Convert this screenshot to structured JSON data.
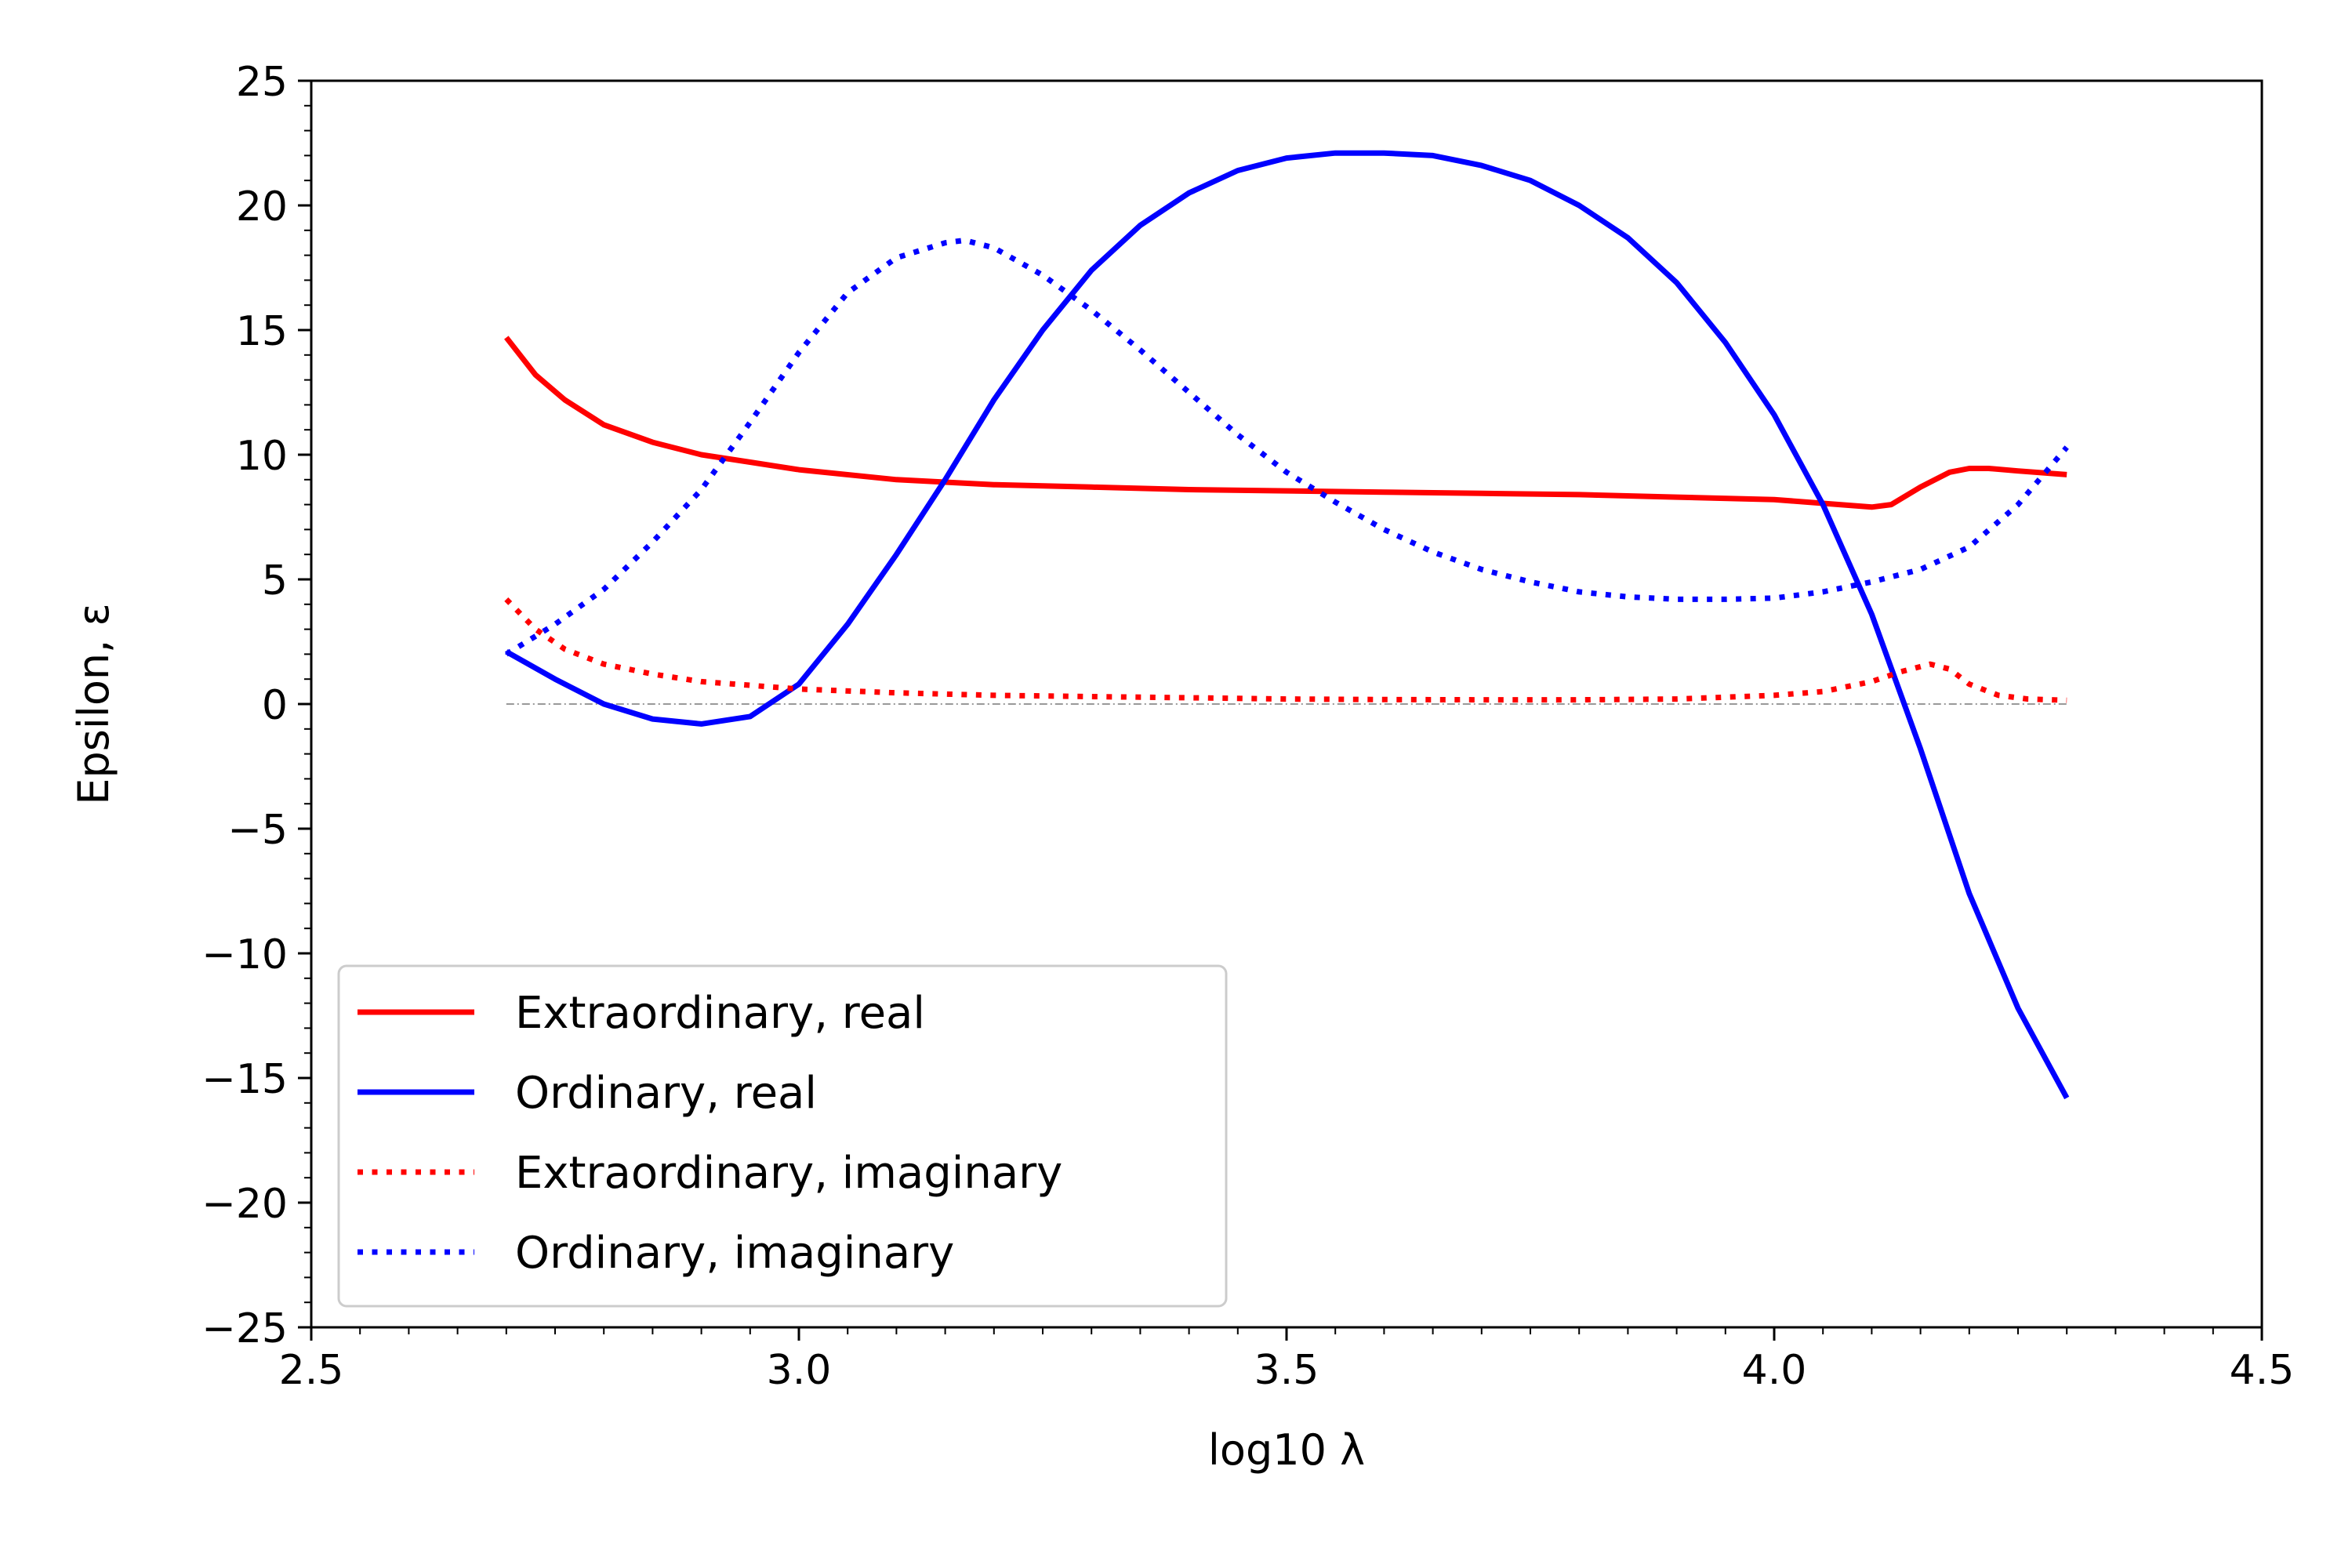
{
  "chart_data": {
    "type": "line",
    "xlabel": "log10 λ",
    "ylabel": "Epsilon, ε",
    "xlim": [
      2.5,
      4.5
    ],
    "ylim": [
      -25,
      25
    ],
    "xticks": [
      2.5,
      3.0,
      3.5,
      4.0,
      4.5
    ],
    "xtick_labels": [
      "2.5",
      "3.0",
      "3.5",
      "4.0",
      "4.5"
    ],
    "yticks": [
      -25,
      -20,
      -15,
      -10,
      -5,
      0,
      5,
      10,
      15,
      20,
      25
    ],
    "ytick_labels": [
      "−25",
      "−20",
      "−15",
      "−10",
      "−5",
      "0",
      "5",
      "10",
      "15",
      "20",
      "25"
    ],
    "grid": false,
    "legend_position": "lower-left",
    "reference_line": {
      "y": 0,
      "color": "#999999",
      "style": "dashdot",
      "x_range": [
        2.7,
        4.3
      ]
    },
    "series": [
      {
        "name": "Extraordinary, real",
        "color": "#ff0000",
        "style": "solid",
        "x": [
          2.7,
          2.73,
          2.76,
          2.8,
          2.85,
          2.9,
          2.95,
          3.0,
          3.1,
          3.2,
          3.3,
          3.4,
          3.5,
          3.6,
          3.7,
          3.8,
          3.9,
          4.0,
          4.05,
          4.1,
          4.12,
          4.15,
          4.18,
          4.2,
          4.22,
          4.25,
          4.3
        ],
        "y": [
          14.7,
          13.2,
          12.2,
          11.2,
          10.5,
          10.0,
          9.7,
          9.4,
          9.0,
          8.8,
          8.7,
          8.6,
          8.55,
          8.5,
          8.45,
          8.4,
          8.3,
          8.2,
          8.05,
          7.9,
          8.0,
          8.7,
          9.3,
          9.45,
          9.45,
          9.35,
          9.2
        ]
      },
      {
        "name": "Ordinary, real",
        "color": "#0000ff",
        "style": "solid",
        "x": [
          2.7,
          2.75,
          2.8,
          2.85,
          2.9,
          2.95,
          3.0,
          3.05,
          3.1,
          3.15,
          3.2,
          3.25,
          3.3,
          3.35,
          3.4,
          3.45,
          3.5,
          3.55,
          3.6,
          3.65,
          3.7,
          3.75,
          3.8,
          3.85,
          3.9,
          3.95,
          4.0,
          4.05,
          4.1,
          4.15,
          4.2,
          4.25,
          4.3
        ],
        "y": [
          2.1,
          1.0,
          0.0,
          -0.6,
          -0.8,
          -0.5,
          0.8,
          3.2,
          6.0,
          9.0,
          12.2,
          15.0,
          17.4,
          19.2,
          20.5,
          21.4,
          21.9,
          22.1,
          22.1,
          22.0,
          21.6,
          21.0,
          20.0,
          18.7,
          16.9,
          14.5,
          11.6,
          8.0,
          3.6,
          -1.8,
          -7.6,
          -12.2,
          -15.8
        ]
      },
      {
        "name": "Extraordinary, imaginary",
        "color": "#ff0000",
        "style": "dotted",
        "x": [
          2.7,
          2.73,
          2.76,
          2.8,
          2.85,
          2.9,
          2.95,
          3.0,
          3.1,
          3.2,
          3.3,
          3.4,
          3.5,
          3.6,
          3.7,
          3.8,
          3.9,
          4.0,
          4.05,
          4.1,
          4.13,
          4.16,
          4.18,
          4.2,
          4.23,
          4.26,
          4.3
        ],
        "y": [
          4.2,
          3.0,
          2.2,
          1.6,
          1.2,
          0.9,
          0.75,
          0.6,
          0.45,
          0.35,
          0.3,
          0.25,
          0.2,
          0.18,
          0.17,
          0.17,
          0.2,
          0.35,
          0.5,
          0.9,
          1.3,
          1.6,
          1.4,
          0.8,
          0.35,
          0.2,
          0.15
        ]
      },
      {
        "name": "Ordinary, imaginary",
        "color": "#0000ff",
        "style": "dotted",
        "x": [
          2.7,
          2.75,
          2.8,
          2.85,
          2.9,
          2.95,
          3.0,
          3.05,
          3.1,
          3.15,
          3.17,
          3.2,
          3.25,
          3.3,
          3.35,
          3.4,
          3.45,
          3.5,
          3.55,
          3.6,
          3.65,
          3.7,
          3.75,
          3.8,
          3.85,
          3.9,
          3.95,
          4.0,
          4.05,
          4.1,
          4.15,
          4.2,
          4.25,
          4.3
        ],
        "y": [
          2.0,
          3.2,
          4.6,
          6.5,
          8.6,
          11.3,
          14.1,
          16.5,
          17.9,
          18.5,
          18.6,
          18.3,
          17.2,
          15.8,
          14.2,
          12.5,
          10.8,
          9.3,
          8.1,
          7.0,
          6.1,
          5.4,
          4.9,
          4.5,
          4.3,
          4.2,
          4.2,
          4.25,
          4.5,
          4.9,
          5.4,
          6.3,
          8.0,
          10.3
        ]
      }
    ]
  }
}
